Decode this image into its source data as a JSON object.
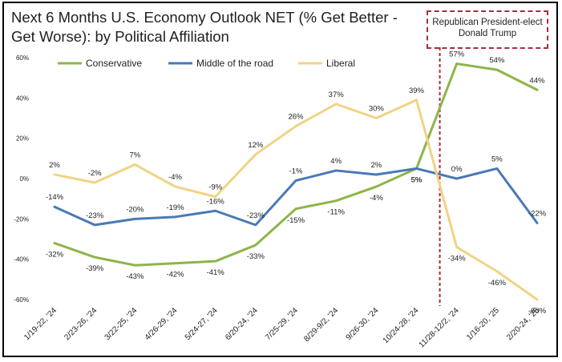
{
  "title": "Next 6 Months U.S. Economy Outlook NET (% Get Better - Get Worse): by Political Affiliation",
  "annotation": {
    "label": "Republican President-elect Donald Trump",
    "color": "#a4303a"
  },
  "chart_data": {
    "type": "line",
    "title": "Next 6 Months U.S. Economy Outlook NET (% Get Better - Get Worse): by Political Affiliation",
    "xlabel": "",
    "ylabel": "",
    "ylim": [
      -60,
      60
    ],
    "yticks": [
      "60%",
      "40%",
      "20%",
      "0%",
      "-20%",
      "-40%",
      "-60%"
    ],
    "ytick_values": [
      60,
      40,
      20,
      0,
      -20,
      -40,
      -60
    ],
    "grid": false,
    "legend_position": "top-left",
    "categories": [
      "1/19-22, '24",
      "2/23-26, '24",
      "3/22-25, '24",
      "4/26-29, '24",
      "5/24-27, '24",
      "6/20-24, '24",
      "7/25-29, '24",
      "8/29-9/2, '24",
      "9/26-30, '24",
      "10/24-28, '24",
      "11/28-12/2, '24",
      "1/16-20, '25",
      "2/20-24, '25"
    ],
    "series": [
      {
        "name": "Conservative",
        "color": "#8db54a",
        "values": [
          -32,
          -39,
          -43,
          -42,
          -41,
          -33,
          -15,
          -11,
          -4,
          5,
          57,
          54,
          44
        ],
        "labels": [
          "-32%",
          "-39%",
          "-43%",
          "-42%",
          "-41%",
          "-33%",
          "-15%",
          "-11%",
          "-4%",
          "5%",
          "57%",
          "54%",
          "44%"
        ]
      },
      {
        "name": "Middle of the road",
        "color": "#4a79b6",
        "values": [
          -14,
          -23,
          -20,
          -19,
          -16,
          -23,
          -1,
          4,
          2,
          5,
          0,
          5,
          -22
        ],
        "labels": [
          "-14%",
          "-23%",
          "-20%",
          "-19%",
          "-16%",
          "-23%",
          "-1%",
          "4%",
          "2%",
          "5%",
          "0%",
          "5%",
          "-22%"
        ]
      },
      {
        "name": "Liberal",
        "color": "#f0d384",
        "values": [
          2,
          -2,
          7,
          -4,
          -9,
          12,
          26,
          37,
          30,
          39,
          -34,
          -46,
          -60
        ],
        "labels": [
          "2%",
          "-2%",
          "7%",
          "-4%",
          "-9%",
          "12%",
          "26%",
          "37%",
          "30%",
          "39%",
          "-34%",
          "-46%",
          "-60%"
        ]
      }
    ],
    "marker_line": {
      "between_categories": [
        "10/24-28, '24",
        "11/28-12/2, '24"
      ],
      "style": "dashed"
    }
  }
}
